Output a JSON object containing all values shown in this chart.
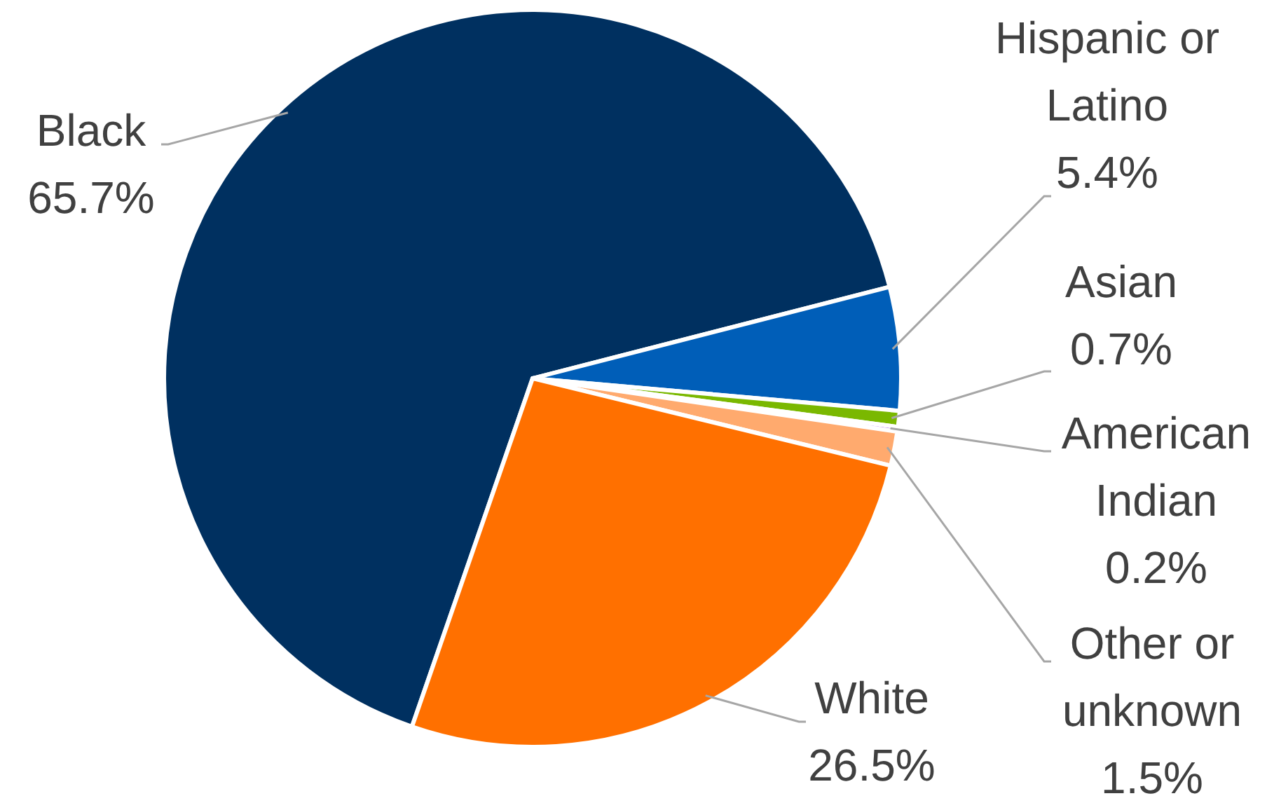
{
  "chart_data": {
    "type": "pie",
    "categories": [
      "Black",
      "Hispanic or Latino",
      "Asian",
      "American Indian",
      "Other or unknown",
      "White"
    ],
    "values": [
      65.7,
      5.4,
      0.7,
      0.2,
      1.5,
      26.5
    ],
    "colors": [
      "#003060",
      "#005eb8",
      "#7ab800",
      "#8a2be2",
      "#ffaa6e",
      "#ff7000"
    ],
    "value_labels": [
      "65.7%",
      "5.4%",
      "0.7%",
      "0.2%",
      "1.5%",
      "26.5%"
    ]
  }
}
